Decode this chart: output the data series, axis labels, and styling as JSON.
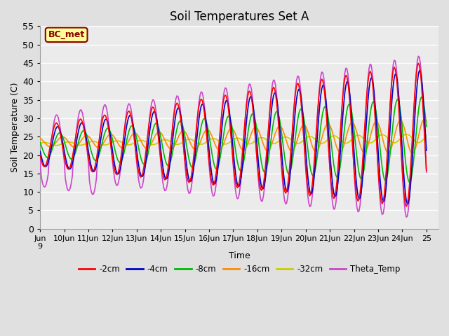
{
  "title": "Soil Temperatures Set A",
  "xlabel": "Time",
  "ylabel": "Soil Temperature (C)",
  "ylim": [
    0,
    55
  ],
  "yticks": [
    0,
    5,
    10,
    15,
    20,
    25,
    30,
    35,
    40,
    45,
    50,
    55
  ],
  "annotation": "BC_met",
  "annotation_color": "#8B0000",
  "annotation_bg": "#FFFF99",
  "series": {
    "2cm": {
      "color": "#FF0000",
      "label": "-2cm"
    },
    "4cm": {
      "color": "#0000CD",
      "label": "-4cm"
    },
    "8cm": {
      "color": "#00BB00",
      "label": "-8cm"
    },
    "16cm": {
      "color": "#FF8C00",
      "label": "-16cm"
    },
    "32cm": {
      "color": "#CCCC00",
      "label": "-32cm"
    },
    "theta": {
      "color": "#CC44CC",
      "label": "Theta_Temp"
    }
  },
  "bg_color": "#E0E0E0",
  "plot_bg": "#EBEBEB",
  "grid_color": "#FFFFFF",
  "xstart": 9.0,
  "xend": 25.5,
  "figsize": [
    6.4,
    4.8
  ],
  "dpi": 100
}
